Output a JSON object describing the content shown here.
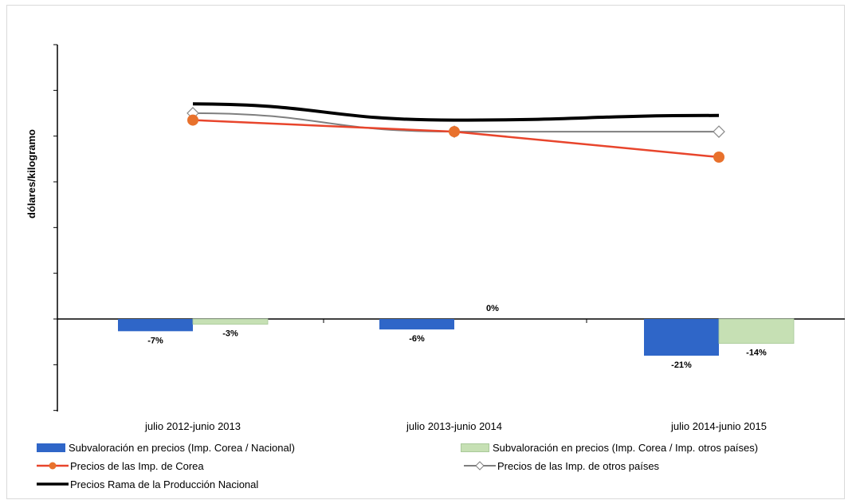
{
  "chart_data": {
    "type": "bar+line",
    "ylabel": "dólares/kilogramo",
    "categories": [
      "julio 2012-junio 2013",
      "julio 2013-junio 2014",
      "julio 2014-junio 2015"
    ],
    "zero_label": "0%",
    "bar_series": [
      {
        "name": "Subvaloración en precios (Imp. Corea / Nacional)",
        "color": "#2f66c8",
        "values": [
          -7,
          -6,
          -21
        ],
        "labels": [
          "-7%",
          "-6%",
          "-21%"
        ]
      },
      {
        "name": "Subvaloración en precios (Imp. Corea / Imp. otros países)",
        "color": "#c6e0b4",
        "values": [
          -3,
          null,
          -14
        ],
        "labels": [
          "-3%",
          "",
          "-14%"
        ]
      }
    ],
    "line_series": [
      {
        "name": "Precios de las Imp.  de Corea",
        "color": "#e8452c",
        "marker": "circle",
        "values": [
          0.86,
          0.81,
          0.7
        ]
      },
      {
        "name": "Precios de las Imp. de otros países",
        "color": "#7f7f7f",
        "marker": "diamond",
        "values": [
          0.89,
          0.81,
          0.81
        ]
      },
      {
        "name": "Precios Rama de la Producción Nacional",
        "color": "#000000",
        "marker": "none",
        "values": [
          0.93,
          0.86,
          0.88
        ]
      }
    ],
    "y_ticks_count": 8,
    "grid": false,
    "legend_position": "bottom"
  }
}
